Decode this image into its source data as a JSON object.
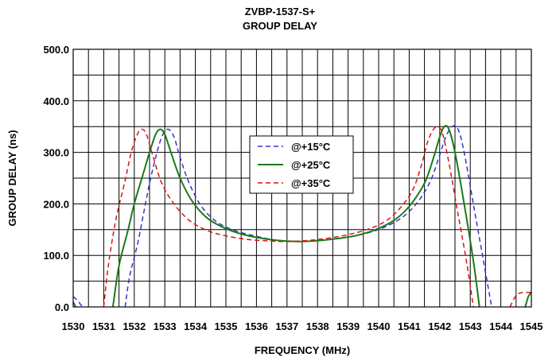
{
  "chart_data": {
    "type": "line",
    "title": "ZVBP-1537-S+",
    "subtitle": "GROUP DELAY",
    "xlabel": "FREQUENCY (MHz)",
    "ylabel": "GROUP DELAY (ns)",
    "xlim": [
      1530,
      1545
    ],
    "ylim": [
      0,
      500
    ],
    "x_ticks": [
      "1530",
      "1531",
      "1532",
      "1533",
      "1534",
      "1535",
      "1536",
      "1537",
      "1538",
      "1539",
      "1540",
      "1541",
      "1542",
      "1543",
      "1544",
      "1545"
    ],
    "y_ticks": [
      "0.0",
      "100.0",
      "200.0",
      "300.0",
      "400.0",
      "500.0"
    ],
    "grid": true,
    "legend_position": "center",
    "series": [
      {
        "name": "@+15°C",
        "color": "#3333cc",
        "dash": "dashed",
        "segments": [
          [
            [
              1530,
              20
            ],
            [
              1530.15,
              12
            ],
            [
              1530.3,
              0
            ]
          ],
          [
            [
              1531.7,
              0
            ],
            [
              1531.85,
              60
            ],
            [
              1532.1,
              120
            ],
            [
              1532.3,
              180
            ],
            [
              1532.5,
              240
            ],
            [
              1532.7,
              290
            ],
            [
              1532.9,
              330
            ],
            [
              1533.1,
              345
            ],
            [
              1533.3,
              330
            ],
            [
              1533.5,
              290
            ],
            [
              1533.8,
              240
            ],
            [
              1534.2,
              195
            ],
            [
              1534.7,
              165
            ],
            [
              1535.3,
              148
            ],
            [
              1536,
              137
            ],
            [
              1536.6,
              130
            ],
            [
              1537.2,
              127
            ],
            [
              1537.8,
              128
            ],
            [
              1538.4,
              131
            ],
            [
              1539,
              136
            ],
            [
              1539.6,
              143
            ],
            [
              1540.2,
              155
            ],
            [
              1540.8,
              175
            ],
            [
              1541.3,
              205
            ],
            [
              1541.7,
              245
            ],
            [
              1542,
              295
            ],
            [
              1542.2,
              330
            ],
            [
              1542.4,
              350
            ],
            [
              1542.6,
              345
            ],
            [
              1542.8,
              300
            ],
            [
              1543.1,
              200
            ],
            [
              1543.4,
              100
            ],
            [
              1543.7,
              0
            ]
          ],
          [
            [
              1545,
              18
            ]
          ]
        ]
      },
      {
        "name": "@+25°C",
        "color": "#1a7a1a",
        "dash": "solid",
        "segments": [
          [
            [
              1530,
              10
            ],
            [
              1530.08,
              0
            ]
          ],
          [
            [
              1531.3,
              0
            ],
            [
              1531.5,
              80
            ],
            [
              1531.8,
              150
            ],
            [
              1532,
              200
            ],
            [
              1532.3,
              260
            ],
            [
              1532.5,
              300
            ],
            [
              1532.7,
              335
            ],
            [
              1532.85,
              345
            ],
            [
              1533,
              335
            ],
            [
              1533.2,
              300
            ],
            [
              1533.5,
              250
            ],
            [
              1533.9,
              205
            ],
            [
              1534.4,
              172
            ],
            [
              1535,
              152
            ],
            [
              1535.6,
              140
            ],
            [
              1536.3,
              132
            ],
            [
              1536.9,
              128
            ],
            [
              1537.5,
              127
            ],
            [
              1538.1,
              129
            ],
            [
              1538.7,
              133
            ],
            [
              1539.3,
              139
            ],
            [
              1539.9,
              150
            ],
            [
              1540.5,
              168
            ],
            [
              1541,
              195
            ],
            [
              1541.5,
              240
            ],
            [
              1541.8,
              290
            ],
            [
              1542,
              330
            ],
            [
              1542.15,
              350
            ],
            [
              1542.3,
              345
            ],
            [
              1542.5,
              300
            ],
            [
              1542.8,
              200
            ],
            [
              1543.1,
              90
            ],
            [
              1543.3,
              0
            ]
          ],
          [
            [
              1544.8,
              0
            ],
            [
              1544.9,
              20
            ],
            [
              1545,
              28
            ]
          ]
        ]
      },
      {
        "name": "@+35°C",
        "color": "#dd1111",
        "dash": "dashed",
        "segments": [
          [
            [
              1531,
              0
            ],
            [
              1531.15,
              80
            ],
            [
              1531.4,
              170
            ],
            [
              1531.7,
              245
            ],
            [
              1531.9,
              300
            ],
            [
              1532.1,
              335
            ],
            [
              1532.25,
              345
            ],
            [
              1532.4,
              335
            ],
            [
              1532.6,
              295
            ],
            [
              1532.9,
              240
            ],
            [
              1533.3,
              200
            ],
            [
              1533.8,
              168
            ],
            [
              1534.4,
              148
            ],
            [
              1535,
              138
            ],
            [
              1535.7,
              131
            ],
            [
              1536.4,
              128
            ],
            [
              1537,
              127
            ],
            [
              1537.7,
              129
            ],
            [
              1538.3,
              133
            ],
            [
              1538.9,
              139
            ],
            [
              1539.5,
              148
            ],
            [
              1540.1,
              162
            ],
            [
              1540.6,
              185
            ],
            [
              1541.1,
              225
            ],
            [
              1541.4,
              275
            ],
            [
              1541.6,
              320
            ],
            [
              1541.8,
              345
            ],
            [
              1541.95,
              350
            ],
            [
              1542.1,
              335
            ],
            [
              1542.3,
              280
            ],
            [
              1542.6,
              180
            ],
            [
              1542.9,
              80
            ],
            [
              1543.1,
              0
            ]
          ],
          [
            [
              1544.3,
              0
            ],
            [
              1544.5,
              22
            ],
            [
              1544.7,
              28
            ],
            [
              1545,
              28
            ]
          ]
        ]
      }
    ]
  }
}
